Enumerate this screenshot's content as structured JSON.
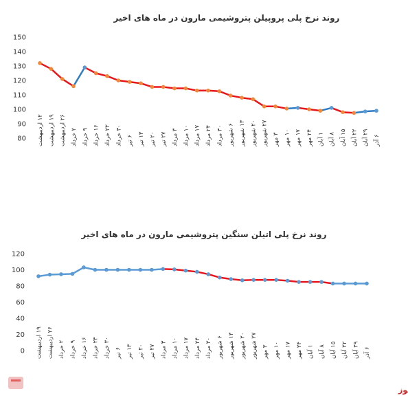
{
  "chart_data": [
    {
      "type": "line",
      "title": "روند نرخ پلی پروپیلن پتروشیمی مارون در ماه های اخیر",
      "ylim": [
        80,
        150
      ],
      "yticks": [
        80,
        90,
        100,
        110,
        120,
        130,
        140,
        150
      ],
      "x": [
        "۱۲ اردیبهشت",
        "۱۹ اردیبهشت",
        "۲۶ اردیبهشت",
        "۲ خرداد",
        "۹ خرداد",
        "۱۶ خرداد",
        "۲۳ خرداد",
        "۳۰ خرداد",
        "۶ تیر",
        "۱۳ تیر",
        "۲۰ تیر",
        "۲۷ تیر",
        "۳ مرداد",
        "۱۰ مرداد",
        "۱۷ مرداد",
        "۲۴ مرداد",
        "۳۰ مرداد",
        "۶ شهریور",
        "۱۳ شهریور",
        "۲۰ شهریور",
        "۲۷ شهریور",
        "۳ مهر",
        "۱۰ مهر",
        "۱۷ مهر",
        "۲۴ مهر",
        "۱ آبان",
        "۸ آبان",
        "۱۵ آبان",
        "۲۲ آبان",
        "۲۹ آبان",
        "۶ آذر"
      ],
      "values": [
        132,
        128,
        121,
        116,
        129,
        125,
        123,
        120,
        119,
        118,
        115.5,
        115.5,
        114.5,
        114.5,
        113,
        113,
        112.5,
        109.5,
        108,
        107,
        102,
        102,
        100.5,
        101,
        100,
        99,
        101,
        98,
        97.5,
        98.5,
        99
      ],
      "colors": {
        "falling": "#e8161b",
        "rising": "#2e7cc4",
        "marker": "#f0883a",
        "marker_rising": "#5b9bd5"
      },
      "grid": false
    },
    {
      "type": "line",
      "title": "روند نرخ پلی اتیلن سنگین پتروشیمی مارون در ماه های اخیر",
      "ylim": [
        0,
        120
      ],
      "yticks": [
        0,
        20,
        40,
        60,
        80,
        100,
        120
      ],
      "x": [
        "۱۹ اردیبهشت",
        "۲۶ اردیبهشت",
        "۲ خرداد",
        "۹ خرداد",
        "۱۶ خرداد",
        "۲۳ خرداد",
        "۳۰ خرداد",
        "۶ تیر",
        "۱۳ تیر",
        "۲۰ تیر",
        "۲۷ تیر",
        "۳ مرداد",
        "۱۰ مرداد",
        "۱۷ مرداد",
        "۲۴ مرداد",
        "۳۰ مرداد",
        "۶ شهریور",
        "۱۳ شهریور",
        "۲۰ شهریور",
        "۲۷ شهریور",
        "۳ مهر",
        "۱۰ مهر",
        "۱۷ مهر",
        "۲۴ مهر",
        "۱ آبان",
        "۸ آبان",
        "۱۵ آبان",
        "۲۲ آبان",
        "۲۹ آبان",
        "۶ آذر"
      ],
      "values": [
        92,
        94,
        94.5,
        95,
        103,
        100,
        100,
        100,
        100,
        100,
        100,
        101,
        100.5,
        99,
        97.5,
        94.5,
        90.5,
        88.5,
        87,
        87.5,
        87.5,
        87.5,
        86.5,
        85,
        85,
        85,
        83,
        83,
        83,
        83
      ],
      "colors": {
        "falling": "#e8161b",
        "line": "#5b9bd5",
        "marker": "#5b9bd5"
      },
      "grid": false
    }
  ],
  "footer": {
    "brand": "بورس نیوز"
  }
}
